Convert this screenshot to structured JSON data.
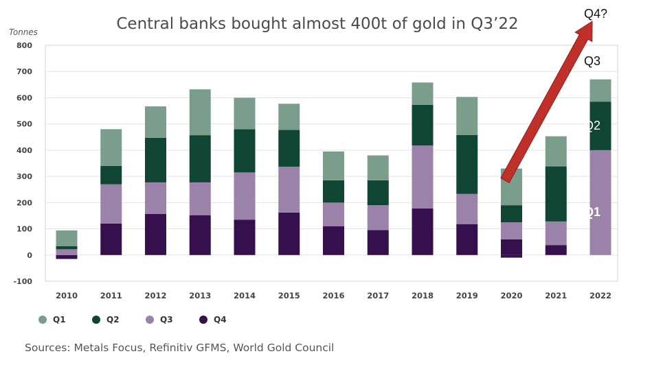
{
  "chart_data": {
    "type": "bar",
    "stacked": true,
    "title": "Central banks bought almost 400t of gold in Q3’22",
    "ylabel": "Tonnes",
    "ylim": [
      -100,
      800
    ],
    "yticks": [
      -100,
      0,
      100,
      200,
      300,
      400,
      500,
      600,
      700,
      800
    ],
    "grid": true,
    "legend_position": "bottom-left",
    "categories": [
      "2010",
      "2011",
      "2012",
      "2013",
      "2014",
      "2015",
      "2016",
      "2017",
      "2018",
      "2019",
      "2020",
      "2021",
      "2022"
    ],
    "series": [
      {
        "name": "Q1",
        "color": "#7a9e8b",
        "values": [
          60,
          140,
          120,
          175,
          120,
          100,
          110,
          95,
          85,
          145,
          140,
          115,
          85
        ]
      },
      {
        "name": "Q2",
        "color": "#0f4532",
        "values": [
          12,
          70,
          170,
          180,
          165,
          140,
          85,
          95,
          155,
          225,
          65,
          210,
          185
        ]
      },
      {
        "name": "Q3",
        "color": "#9a82a8",
        "values": [
          22,
          150,
          120,
          125,
          180,
          175,
          90,
          95,
          240,
          115,
          65,
          90,
          400
        ]
      },
      {
        "name": "Q4",
        "color": "#36104c",
        "values": [
          -15,
          120,
          157,
          152,
          135,
          162,
          110,
          95,
          178,
          118,
          -10,
          38,
          0
        ]
      }
    ],
    "q4_2020_positive": 60,
    "annotations": [
      {
        "text": "Q4?",
        "color": "#111111"
      },
      {
        "text": "Q3",
        "color": "#111111"
      },
      {
        "text": "Q2",
        "color": "#ffffff"
      },
      {
        "text": "Q1",
        "color": "#ffffff"
      }
    ],
    "source": "Sources: Metals Focus, Refinitiv GFMS, World Gold Council",
    "arrow_color": "#c0302b"
  }
}
